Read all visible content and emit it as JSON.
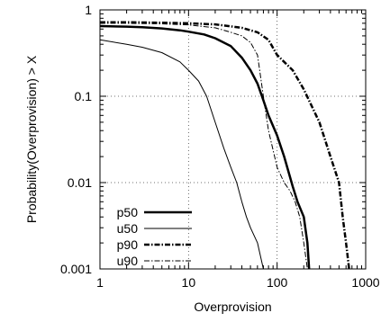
{
  "chart_data": {
    "type": "line",
    "title": "",
    "xlabel": "Overprovision",
    "ylabel": "Probability(Overprovision) > X",
    "xscale": "log",
    "yscale": "log",
    "xlim": [
      1,
      1000
    ],
    "ylim": [
      0.001,
      1
    ],
    "grid": "major, dotted",
    "legend_position": "bottom-left",
    "x_tick_labels": [
      "1",
      "10",
      "100",
      "1000"
    ],
    "y_tick_labels": [
      "0.001",
      "0.01",
      "0.1",
      "1"
    ],
    "x_ticks": [
      1,
      10,
      100,
      1000
    ],
    "y_ticks": [
      0.001,
      0.01,
      0.1,
      1
    ],
    "series": [
      {
        "name": "p50",
        "style": "thick-solid",
        "points": [
          [
            1,
            0.65
          ],
          [
            2,
            0.64
          ],
          [
            3,
            0.63
          ],
          [
            5,
            0.61
          ],
          [
            8,
            0.58
          ],
          [
            10,
            0.56
          ],
          [
            15,
            0.52
          ],
          [
            20,
            0.47
          ],
          [
            30,
            0.38
          ],
          [
            40,
            0.28
          ],
          [
            50,
            0.2
          ],
          [
            60,
            0.14
          ],
          [
            70,
            0.09
          ],
          [
            80,
            0.06
          ],
          [
            100,
            0.035
          ],
          [
            120,
            0.02
          ],
          [
            150,
            0.009
          ],
          [
            170,
            0.006
          ],
          [
            200,
            0.004
          ],
          [
            220,
            0.002
          ],
          [
            230,
            0.001
          ]
        ]
      },
      {
        "name": "u50",
        "style": "thin-solid",
        "points": [
          [
            1,
            0.45
          ],
          [
            2,
            0.4
          ],
          [
            3,
            0.37
          ],
          [
            5,
            0.32
          ],
          [
            8,
            0.25
          ],
          [
            10,
            0.2
          ],
          [
            13,
            0.15
          ],
          [
            16,
            0.1
          ],
          [
            20,
            0.05
          ],
          [
            25,
            0.025
          ],
          [
            30,
            0.015
          ],
          [
            35,
            0.01
          ],
          [
            40,
            0.006
          ],
          [
            45,
            0.004
          ],
          [
            50,
            0.003
          ],
          [
            60,
            0.002
          ],
          [
            70,
            0.001
          ]
        ]
      },
      {
        "name": "p90",
        "style": "thick-dashdot",
        "points": [
          [
            1,
            0.72
          ],
          [
            2,
            0.72
          ],
          [
            5,
            0.71
          ],
          [
            10,
            0.7
          ],
          [
            20,
            0.68
          ],
          [
            40,
            0.62
          ],
          [
            60,
            0.55
          ],
          [
            80,
            0.45
          ],
          [
            100,
            0.3
          ],
          [
            150,
            0.2
          ],
          [
            200,
            0.12
          ],
          [
            300,
            0.05
          ],
          [
            400,
            0.02
          ],
          [
            500,
            0.01
          ],
          [
            550,
            0.004
          ],
          [
            600,
            0.002
          ],
          [
            650,
            0.001
          ]
        ]
      },
      {
        "name": "u90",
        "style": "thin-dashdot",
        "points": [
          [
            1,
            0.7
          ],
          [
            2,
            0.7
          ],
          [
            5,
            0.69
          ],
          [
            10,
            0.67
          ],
          [
            20,
            0.62
          ],
          [
            30,
            0.55
          ],
          [
            40,
            0.5
          ],
          [
            50,
            0.42
          ],
          [
            60,
            0.3
          ],
          [
            70,
            0.1
          ],
          [
            80,
            0.04
          ],
          [
            100,
            0.015
          ],
          [
            120,
            0.01
          ],
          [
            140,
            0.008
          ],
          [
            160,
            0.006
          ],
          [
            180,
            0.004
          ],
          [
            200,
            0.002
          ],
          [
            220,
            0.001
          ]
        ]
      }
    ]
  }
}
